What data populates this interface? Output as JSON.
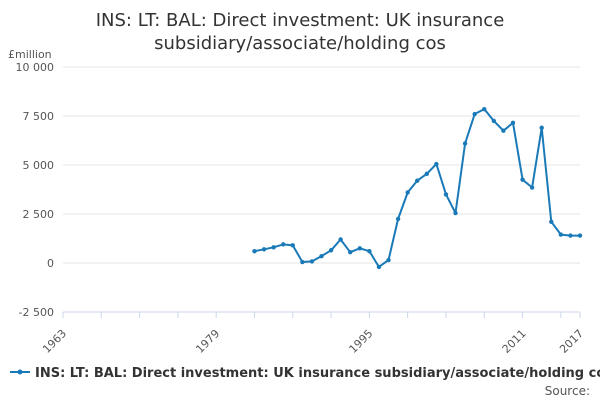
{
  "colors": {
    "series": "#1a7ab8",
    "grid": "#e6e6e6",
    "axis": "#ccd6eb",
    "text": "#333333"
  },
  "chart_data": {
    "type": "line",
    "title_line1": "INS: LT: BAL: Direct investment: UK insurance",
    "title_line2": "subsidiary/associate/holding cos",
    "ylabel": "£million",
    "ylim": [
      -2500,
      10000
    ],
    "yticks": [
      {
        "value": 10000,
        "label": "10 000"
      },
      {
        "value": 7500,
        "label": "7 500"
      },
      {
        "value": 5000,
        "label": "5 000"
      },
      {
        "value": 2500,
        "label": "2 500"
      },
      {
        "value": 0,
        "label": "0"
      },
      {
        "value": -2500,
        "label": "-2 500"
      }
    ],
    "xlim": [
      1963,
      2017
    ],
    "xticks": [
      {
        "value": 1963,
        "label": "1963"
      },
      {
        "value": 1979,
        "label": "1979"
      },
      {
        "value": 1995,
        "label": "1995"
      },
      {
        "value": 2011,
        "label": "2011"
      },
      {
        "value": 2017,
        "label": "2017"
      }
    ],
    "grid": true,
    "legend_position": "bottom",
    "source": "Source:",
    "series": [
      {
        "name": "INS: LT: BAL: Direct investment: UK insurance subsidiary/associate/holding cos",
        "x": [
          1983,
          1984,
          1985,
          1986,
          1987,
          1988,
          1989,
          1990,
          1991,
          1992,
          1993,
          1994,
          1995,
          1996,
          1997,
          1998,
          1999,
          2000,
          2001,
          2002,
          2003,
          2004,
          2005,
          2006,
          2007,
          2008,
          2009,
          2010,
          2011,
          2012,
          2013,
          2014,
          2015,
          2016,
          2017
        ],
        "values": [
          600,
          700,
          800,
          950,
          900,
          50,
          80,
          350,
          650,
          1200,
          550,
          750,
          600,
          -200,
          150,
          2250,
          3600,
          4200,
          4550,
          5050,
          3500,
          2550,
          6100,
          7600,
          7850,
          7250,
          6750,
          7150,
          4250,
          3850,
          6900,
          2100,
          1450,
          1400,
          1400
        ]
      }
    ]
  }
}
